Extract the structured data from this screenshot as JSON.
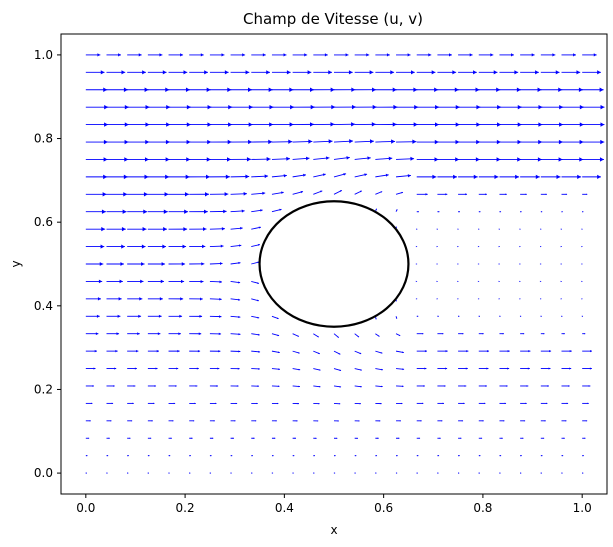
{
  "chart_data": {
    "type": "quiver",
    "title": "Champ de Vitesse (u, v)",
    "xlabel": "x",
    "ylabel": "y",
    "xlim": [
      -0.05,
      1.05
    ],
    "ylim": [
      -0.05,
      1.05
    ],
    "x_ticks": [
      "0.0",
      "0.2",
      "0.4",
      "0.6",
      "0.8",
      "1.0"
    ],
    "y_ticks": [
      "0.0",
      "0.2",
      "0.4",
      "0.6",
      "0.8",
      "1.0"
    ],
    "grid": false,
    "arrow_color": "#0000ff",
    "field": {
      "grid_points_per_axis": 25,
      "x_range": [
        0.0,
        1.0
      ],
      "y_range": [
        0.0,
        1.0
      ],
      "flow_direction": "positive-x",
      "max_speed_row": 0.875,
      "wake": "near-zero velocity downstream of the obstacle"
    },
    "obstacle": {
      "shape": "circle",
      "center": [
        0.5,
        0.5
      ],
      "radius": 0.15,
      "edge_color": "#000000",
      "fill_color": "#ffffff"
    }
  }
}
